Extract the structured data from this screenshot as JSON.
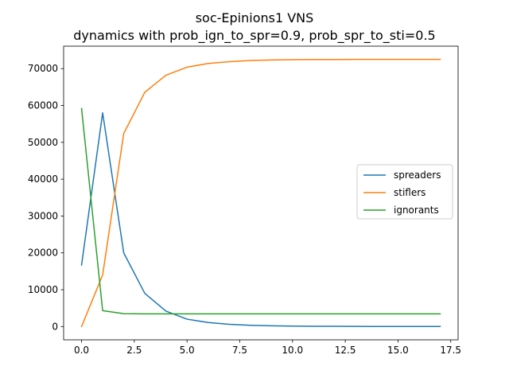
{
  "chart_data": {
    "type": "line",
    "title": "soc-Epinions1 VNS",
    "subtitle": "dynamics with prob_ign_to_spr=0.9, prob_spr_to_sti=0.5",
    "xlabel": "",
    "ylabel": "",
    "x": [
      0,
      1,
      2,
      3,
      4,
      5,
      6,
      7,
      8,
      9,
      10,
      11,
      12,
      13,
      14,
      15,
      16,
      17
    ],
    "xlim": [
      -0.85,
      17.85
    ],
    "ylim": [
      -3600,
      76100
    ],
    "x_ticks": [
      "0.0",
      "2.5",
      "5.0",
      "7.5",
      "10.0",
      "12.5",
      "15.0",
      "17.5"
    ],
    "x_tick_values": [
      0,
      2.5,
      5,
      7.5,
      10,
      12.5,
      15,
      17.5
    ],
    "y_ticks": [
      "0",
      "10000",
      "20000",
      "30000",
      "40000",
      "50000",
      "60000",
      "70000"
    ],
    "y_tick_values": [
      0,
      10000,
      20000,
      30000,
      40000,
      50000,
      60000,
      70000
    ],
    "grid": false,
    "legend_position": "center-right",
    "series": [
      {
        "name": "spreaders",
        "color": "#1f77b4",
        "values": [
          16700,
          58000,
          20000,
          9000,
          4200,
          2000,
          1100,
          600,
          350,
          200,
          120,
          80,
          60,
          40,
          30,
          20,
          15,
          10
        ]
      },
      {
        "name": "stiflers",
        "color": "#ff7f0e",
        "values": [
          0,
          14000,
          52400,
          63600,
          68200,
          70400,
          71400,
          71900,
          72200,
          72350,
          72430,
          72470,
          72490,
          72500,
          72505,
          72510,
          72512,
          72515
        ]
      },
      {
        "name": "ignorants",
        "color": "#2ca02c",
        "values": [
          59200,
          4300,
          3500,
          3450,
          3450,
          3450,
          3450,
          3450,
          3450,
          3450,
          3450,
          3450,
          3450,
          3450,
          3450,
          3450,
          3450,
          3450
        ]
      }
    ]
  }
}
